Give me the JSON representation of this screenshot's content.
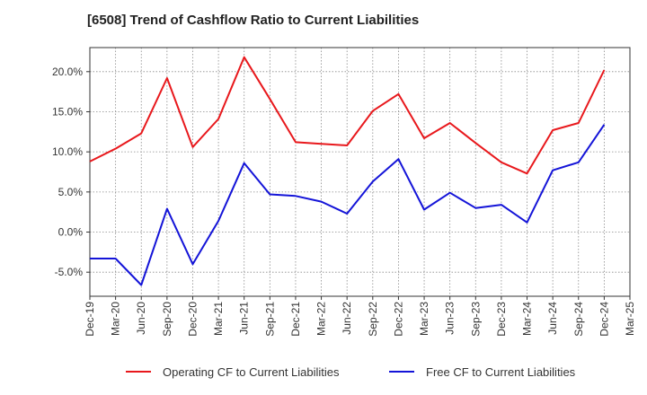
{
  "chart_data": {
    "type": "line",
    "title": "[6508]  Trend of Cashflow Ratio to Current Liabilities",
    "xlabel": "",
    "ylabel": "",
    "categories": [
      "Dec-19",
      "Mar-20",
      "Jun-20",
      "Sep-20",
      "Dec-20",
      "Mar-21",
      "Jun-21",
      "Sep-21",
      "Dec-21",
      "Mar-22",
      "Jun-22",
      "Sep-22",
      "Dec-22",
      "Mar-23",
      "Jun-23",
      "Sep-23",
      "Dec-23",
      "Mar-24",
      "Jun-24",
      "Sep-24",
      "Dec-24",
      "Mar-25"
    ],
    "ylim": [
      -8,
      23
    ],
    "yticks": [
      -5,
      0,
      5,
      10,
      15,
      20
    ],
    "ytick_labels": [
      "-5.0%",
      "0.0%",
      "5.0%",
      "10.0%",
      "15.0%",
      "20.0%"
    ],
    "grid": true,
    "legend_position": "bottom",
    "series": [
      {
        "name": "Operating CF to Current Liabilities",
        "color": "#e8181c",
        "values": [
          8.8,
          10.4,
          12.3,
          19.2,
          10.6,
          14.1,
          21.8,
          16.6,
          11.2,
          11.0,
          10.8,
          15.1,
          17.2,
          11.7,
          13.6,
          11.1,
          8.7,
          7.3,
          12.7,
          13.6,
          20.2,
          null
        ]
      },
      {
        "name": "Free CF to Current Liabilities",
        "color": "#1414d8",
        "values": [
          -3.3,
          -3.3,
          -6.6,
          2.9,
          -4.0,
          1.4,
          8.6,
          4.7,
          4.5,
          3.8,
          2.3,
          6.3,
          9.1,
          2.8,
          4.9,
          3.0,
          3.4,
          1.2,
          7.7,
          8.7,
          13.4,
          null
        ]
      }
    ]
  }
}
